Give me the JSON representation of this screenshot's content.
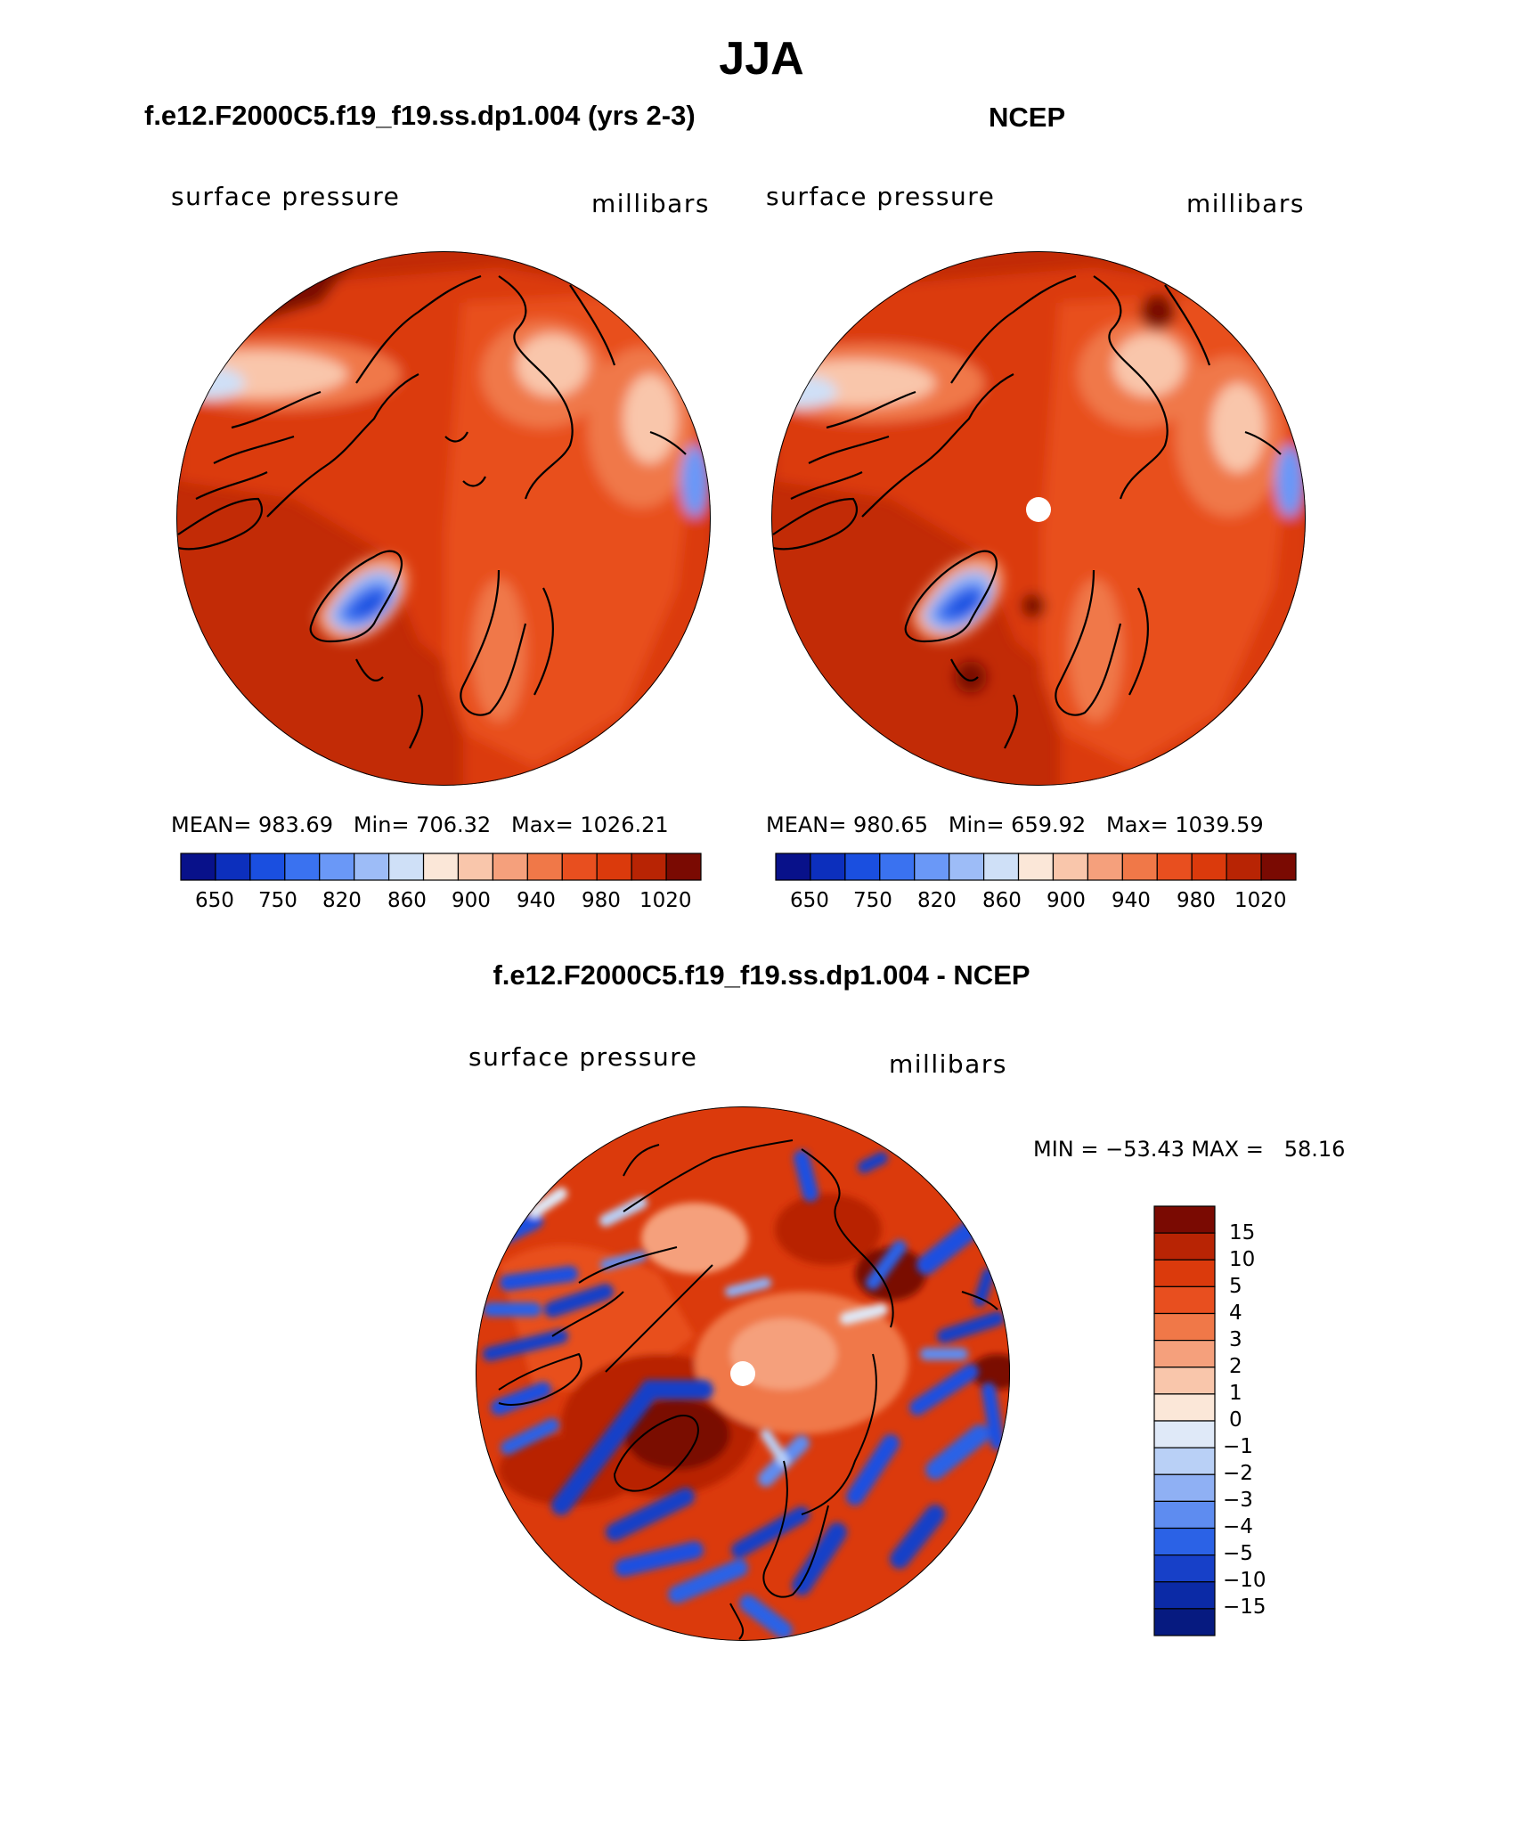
{
  "title": "JJA",
  "panels": [
    {
      "heading": "f.e12.F2000C5.f19_f19.ss.dp1.004 (yrs 2-3)",
      "variable": "surface pressure",
      "units": "millibars",
      "stats": "MEAN= 983.69   Min= 706.32   Max= 1026.21",
      "colorbar_labels": [
        "650",
        "750",
        "820",
        "860",
        "900",
        "940",
        "980",
        "1020"
      ]
    },
    {
      "heading": "NCEP",
      "variable": "surface pressure",
      "units": "millibars",
      "stats": "MEAN= 980.65   Min= 659.92   Max= 1039.59",
      "colorbar_labels": [
        "650",
        "750",
        "820",
        "860",
        "900",
        "940",
        "980",
        "1020"
      ]
    }
  ],
  "difference": {
    "heading": "f.e12.F2000C5.f19_f19.ss.dp1.004 - NCEP",
    "variable": "surface pressure",
    "units": "millibars",
    "stats": "MIN = −53.43 MAX =   58.16",
    "colorbar_labels": [
      "15",
      "10",
      "5",
      "4",
      "3",
      "2",
      "1",
      "0",
      "−1",
      "−2",
      "−3",
      "−4",
      "−5",
      "−10",
      "−15"
    ]
  },
  "colors": {
    "abs_scale": [
      "#08118a",
      "#0c2fbd",
      "#1a4fe0",
      "#3a72f0",
      "#6a98f7",
      "#9dbcf7",
      "#cfe0f7",
      "#fbe7d8",
      "#f9c6ab",
      "#f5a07c",
      "#f07848",
      "#e84f1f",
      "#db3a0c",
      "#b82404",
      "#7a0a02"
    ],
    "diff_scale": [
      "#7a0a02",
      "#b82404",
      "#db3a0c",
      "#e84f1f",
      "#f07848",
      "#f5a07c",
      "#f9c6ab",
      "#fbe7d8",
      "#dfe9f8",
      "#b9d0f6",
      "#8fb0f4",
      "#5e8cf0",
      "#2b62e6",
      "#1740c8",
      "#0b2aa6",
      "#061a80"
    ]
  }
}
